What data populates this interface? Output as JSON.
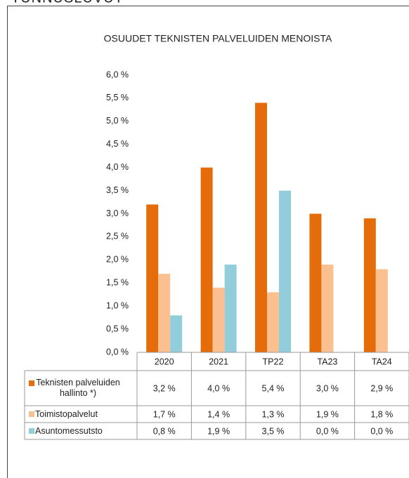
{
  "heading": "TUNNUSLUVUT",
  "chart_data": {
    "type": "bar",
    "title": "OSUUDET TEKNISTEN PALVELUIDEN MENOISTA",
    "categories": [
      "2020",
      "2021",
      "TP22",
      "TA23",
      "TA24"
    ],
    "series": [
      {
        "name": "Teknisten palveluiden hallinto *)",
        "color": "#e46c0a",
        "values": [
          3.2,
          4.0,
          5.4,
          3.0,
          2.9
        ],
        "value_labels": [
          "3,2 %",
          "4,0 %",
          "5,4 %",
          "3,0 %",
          "2,9 %"
        ]
      },
      {
        "name": "Toimistopalvelut",
        "color": "#fac090",
        "values": [
          1.7,
          1.4,
          1.3,
          1.9,
          1.8
        ],
        "value_labels": [
          "1,7 %",
          "1,4 %",
          "1,3 %",
          "1,9 %",
          "1,8 %"
        ]
      },
      {
        "name": "Asuntomessutsto",
        "color": "#92cddc",
        "values": [
          0.8,
          1.9,
          3.5,
          0.0,
          0.0
        ],
        "value_labels": [
          "0,8 %",
          "1,9 %",
          "3,5 %",
          "0,0 %",
          "0,0 %"
        ]
      }
    ],
    "ylim": [
      0,
      6
    ],
    "yticks": [
      {
        "value": 0,
        "label": "0,0 %"
      },
      {
        "value": 0.5,
        "label": "0,5 %"
      },
      {
        "value": 1,
        "label": "1,0 %"
      },
      {
        "value": 1.5,
        "label": "1,5 %"
      },
      {
        "value": 2,
        "label": "2,0 %"
      },
      {
        "value": 2.5,
        "label": "2,5 %"
      },
      {
        "value": 3,
        "label": "3,0 %"
      },
      {
        "value": 3.5,
        "label": "3,5 %"
      },
      {
        "value": 4,
        "label": "4,0 %"
      },
      {
        "value": 4.5,
        "label": "4,5 %"
      },
      {
        "value": 5,
        "label": "5,0 %"
      },
      {
        "value": 5.5,
        "label": "5,5 %"
      },
      {
        "value": 6,
        "label": "6,0 %"
      }
    ],
    "grid": false
  }
}
